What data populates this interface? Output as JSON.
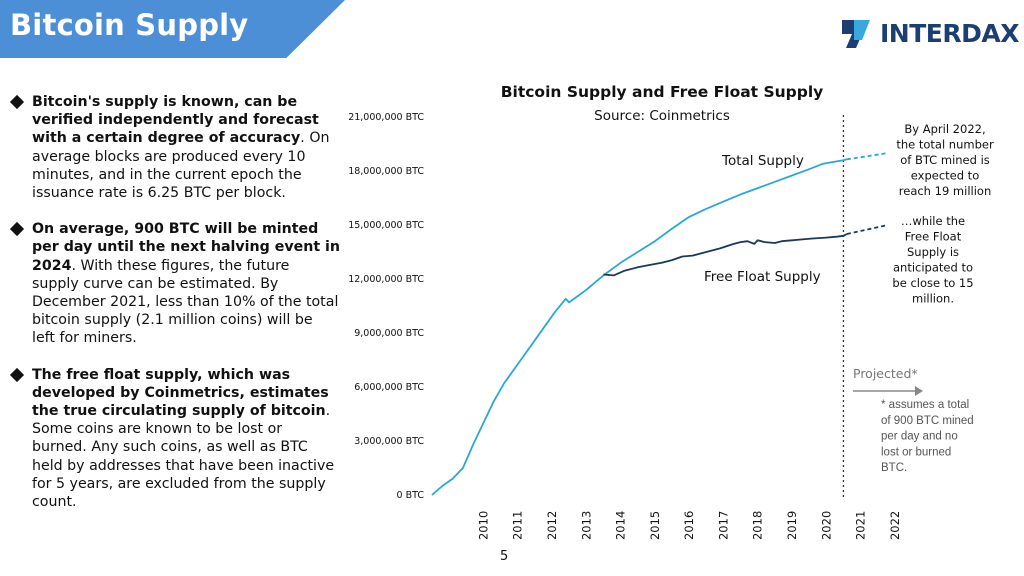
{
  "header": {
    "title": "Bitcoin Supply",
    "logo_text": "INTERDAX"
  },
  "bullets": [
    {
      "bold": "Bitcoin's supply is known, can be verified independently and forecast with a certain degree of accuracy",
      "text": ". On average blocks are produced every 10 minutes, and in the current epoch the issuance rate is 6.25 BTC per block."
    },
    {
      "bold": "On average, 900 BTC will be minted per day until the next halving event in 2024",
      "text": ". With these figures, the future supply curve can be estimated. By December 2021, less than 10% of the total bitcoin supply (2.1 million coins) will be left for miners."
    },
    {
      "bold": "The free float supply, which was developed by Coinmetrics, estimates the true circulating supply of bitcoin",
      "text": ". Some coins are known to be lost or burned. Any such coins, as well as BTC held by addresses that have been inactive for 5 years, are excluded from the supply count."
    }
  ],
  "page_number": "5",
  "colors": {
    "banner": "#4d8fd6",
    "total_supply": "#2aa7d6",
    "free_float": "#163a5c",
    "logo_dark": "#1b3f73",
    "logo_light": "#3aa7e0"
  },
  "icons": {
    "logo": "interdax-logo-icon",
    "bullet": "diamond-bullet-icon",
    "arrow": "projected-arrow-icon"
  },
  "chart_data": {
    "type": "line",
    "title": "Bitcoin Supply and Free Float Supply",
    "subtitle": "Source: Coinmetrics",
    "x_ticks": [
      "2010",
      "2011",
      "2012",
      "2013",
      "2014",
      "2015",
      "2016",
      "2017",
      "2018",
      "2019",
      "2020",
      "2021",
      "2022"
    ],
    "y_ticks": [
      "0 BTC",
      "3,000,000 BTC",
      "6,000,000 BTC",
      "9,000,000 BTC",
      "12,000,000 BTC",
      "15,000,000 BTC",
      "18,000,000 BTC",
      "21,000,000 BTC"
    ],
    "xlim": [
      2009.0,
      2022.3
    ],
    "ylim": [
      0,
      21000000
    ],
    "series": [
      {
        "name": "Total Supply",
        "x": [
          2009.0,
          2009.3,
          2009.6,
          2009.9,
          2010.2,
          2010.5,
          2010.8,
          2011.1,
          2011.4,
          2011.7,
          2012.0,
          2012.3,
          2012.6,
          2012.9,
          2013.0,
          2013.5,
          2014.0,
          2014.5,
          2015.0,
          2015.5,
          2016.0,
          2016.5,
          2017.0,
          2017.5,
          2018.0,
          2018.5,
          2019.0,
          2019.5,
          2020.0,
          2020.4,
          2020.7,
          2021.0,
          2021.1
        ],
        "y": [
          0,
          500000,
          900000,
          1500000,
          2800000,
          4000000,
          5200000,
          6200000,
          7000000,
          7800000,
          8600000,
          9400000,
          10200000,
          10900000,
          10700000,
          11400000,
          12200000,
          12900000,
          13500000,
          14100000,
          14800000,
          15450000,
          15900000,
          16300000,
          16700000,
          17050000,
          17400000,
          17750000,
          18100000,
          18400000,
          18500000,
          18600000,
          18650000
        ]
      },
      {
        "name": "Free Float Supply",
        "x": [
          2014.0,
          2014.3,
          2014.6,
          2015.0,
          2015.4,
          2015.7,
          2016.0,
          2016.3,
          2016.6,
          2017.0,
          2017.4,
          2017.8,
          2018.0,
          2018.2,
          2018.4,
          2018.5,
          2018.7,
          2019.0,
          2019.2,
          2019.5,
          2019.8,
          2020.1,
          2020.5,
          2020.8,
          2021.0,
          2021.1
        ],
        "y": [
          12250000,
          12200000,
          12450000,
          12650000,
          12800000,
          12900000,
          13050000,
          13250000,
          13300000,
          13500000,
          13700000,
          13950000,
          14050000,
          14100000,
          13950000,
          14150000,
          14050000,
          14000000,
          14100000,
          14150000,
          14200000,
          14250000,
          14300000,
          14350000,
          14400000,
          14500000
        ]
      },
      {
        "name": "Total Supply Projected",
        "x": [
          2021.1,
          2022.3
        ],
        "y": [
          18650000,
          19000000
        ]
      },
      {
        "name": "Free Float Projected",
        "x": [
          2021.1,
          2022.3
        ],
        "y": [
          14500000,
          15000000
        ]
      }
    ],
    "annotations": {
      "total_label": "Total Supply",
      "free_float_label": "Free Float Supply",
      "note_total": [
        "By April 2022,",
        "the total number",
        "of BTC mined is",
        "expected to",
        "reach 19 million"
      ],
      "note_free": [
        "…while the",
        "Free Float",
        "Supply is",
        "anticipated to",
        "be close to 15",
        "million."
      ],
      "projected": "Projected*",
      "footnote": [
        "* assumes a total",
        "of 900 BTC mined",
        "per day and no",
        "lost or burned",
        "BTC."
      ],
      "projection_start": 2021.0
    }
  }
}
